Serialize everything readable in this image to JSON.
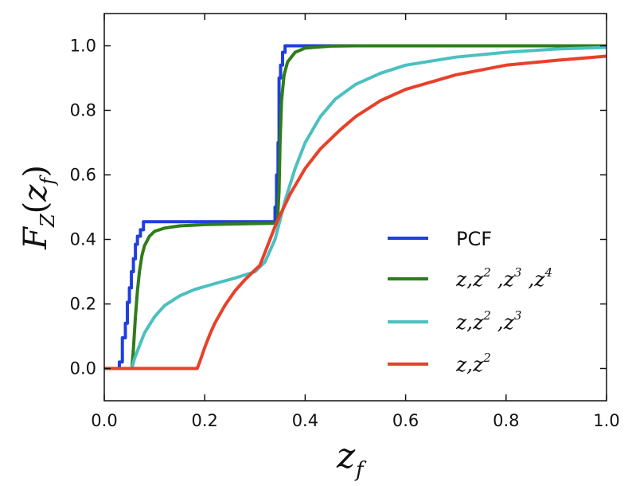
{
  "chart_data": {
    "type": "line",
    "title": "",
    "xlabel": "z_f",
    "ylabel": "F_Z(z_f)",
    "xlim": [
      0.0,
      1.0
    ],
    "ylim": [
      -0.1,
      1.1
    ],
    "grid": false,
    "legend_position": "bottom-right",
    "x_ticks": [
      "0.0",
      "0.2",
      "0.4",
      "0.6",
      "0.8",
      "1.0"
    ],
    "y_ticks": [
      "0.0",
      "0.2",
      "0.4",
      "0.6",
      "0.8",
      "1.0"
    ],
    "series": [
      {
        "name": "PCF",
        "color": "#1f3fe0",
        "step": true,
        "points": [
          [
            0.0,
            0.0
          ],
          [
            0.03,
            0.0
          ],
          [
            0.03,
            0.02
          ],
          [
            0.036,
            0.02
          ],
          [
            0.036,
            0.095
          ],
          [
            0.042,
            0.095
          ],
          [
            0.042,
            0.14
          ],
          [
            0.046,
            0.14
          ],
          [
            0.046,
            0.205
          ],
          [
            0.05,
            0.205
          ],
          [
            0.05,
            0.25
          ],
          [
            0.054,
            0.25
          ],
          [
            0.054,
            0.3
          ],
          [
            0.058,
            0.3
          ],
          [
            0.058,
            0.34
          ],
          [
            0.062,
            0.34
          ],
          [
            0.062,
            0.385
          ],
          [
            0.066,
            0.385
          ],
          [
            0.066,
            0.41
          ],
          [
            0.072,
            0.41
          ],
          [
            0.072,
            0.43
          ],
          [
            0.078,
            0.43
          ],
          [
            0.078,
            0.455
          ],
          [
            0.34,
            0.455
          ],
          [
            0.34,
            0.5
          ],
          [
            0.343,
            0.5
          ],
          [
            0.343,
            0.6
          ],
          [
            0.346,
            0.6
          ],
          [
            0.346,
            0.7
          ],
          [
            0.348,
            0.7
          ],
          [
            0.348,
            0.9
          ],
          [
            0.351,
            0.9
          ],
          [
            0.351,
            0.94
          ],
          [
            0.355,
            0.94
          ],
          [
            0.355,
            0.98
          ],
          [
            0.36,
            0.98
          ],
          [
            0.36,
            1.0
          ],
          [
            1.0,
            1.0
          ]
        ]
      },
      {
        "name": "z,z^2,z^3,z^4",
        "color": "#2e7d1a",
        "points": [
          [
            0.0,
            0.0
          ],
          [
            0.055,
            0.0
          ],
          [
            0.058,
            0.06
          ],
          [
            0.062,
            0.16
          ],
          [
            0.066,
            0.24
          ],
          [
            0.07,
            0.3
          ],
          [
            0.075,
            0.35
          ],
          [
            0.08,
            0.38
          ],
          [
            0.09,
            0.41
          ],
          [
            0.1,
            0.425
          ],
          [
            0.12,
            0.435
          ],
          [
            0.15,
            0.442
          ],
          [
            0.2,
            0.446
          ],
          [
            0.3,
            0.449
          ],
          [
            0.34,
            0.45
          ],
          [
            0.345,
            0.46
          ],
          [
            0.348,
            0.55
          ],
          [
            0.35,
            0.7
          ],
          [
            0.353,
            0.83
          ],
          [
            0.358,
            0.91
          ],
          [
            0.365,
            0.95
          ],
          [
            0.38,
            0.98
          ],
          [
            0.4,
            0.993
          ],
          [
            0.45,
            0.999
          ],
          [
            0.5,
            1.0
          ],
          [
            1.0,
            1.0
          ]
        ]
      },
      {
        "name": "z,z^2,z^3",
        "color": "#4cc0c0",
        "points": [
          [
            0.0,
            0.0
          ],
          [
            0.055,
            0.0
          ],
          [
            0.06,
            0.03
          ],
          [
            0.07,
            0.07
          ],
          [
            0.08,
            0.11
          ],
          [
            0.1,
            0.16
          ],
          [
            0.12,
            0.195
          ],
          [
            0.15,
            0.225
          ],
          [
            0.18,
            0.245
          ],
          [
            0.22,
            0.263
          ],
          [
            0.26,
            0.28
          ],
          [
            0.3,
            0.3
          ],
          [
            0.32,
            0.33
          ],
          [
            0.34,
            0.4
          ],
          [
            0.35,
            0.46
          ],
          [
            0.36,
            0.52
          ],
          [
            0.38,
            0.62
          ],
          [
            0.4,
            0.7
          ],
          [
            0.43,
            0.78
          ],
          [
            0.46,
            0.835
          ],
          [
            0.5,
            0.88
          ],
          [
            0.55,
            0.915
          ],
          [
            0.6,
            0.94
          ],
          [
            0.7,
            0.965
          ],
          [
            0.8,
            0.98
          ],
          [
            0.9,
            0.99
          ],
          [
            1.0,
            0.995
          ]
        ]
      },
      {
        "name": "z,z^2",
        "color": "#e8402a",
        "points": [
          [
            0.0,
            0.0
          ],
          [
            0.185,
            0.0
          ],
          [
            0.19,
            0.02
          ],
          [
            0.2,
            0.065
          ],
          [
            0.21,
            0.105
          ],
          [
            0.22,
            0.14
          ],
          [
            0.24,
            0.195
          ],
          [
            0.26,
            0.24
          ],
          [
            0.28,
            0.275
          ],
          [
            0.3,
            0.305
          ],
          [
            0.31,
            0.32
          ],
          [
            0.32,
            0.36
          ],
          [
            0.33,
            0.4
          ],
          [
            0.34,
            0.44
          ],
          [
            0.35,
            0.475
          ],
          [
            0.37,
            0.54
          ],
          [
            0.4,
            0.62
          ],
          [
            0.43,
            0.68
          ],
          [
            0.47,
            0.74
          ],
          [
            0.5,
            0.78
          ],
          [
            0.55,
            0.83
          ],
          [
            0.6,
            0.865
          ],
          [
            0.7,
            0.91
          ],
          [
            0.8,
            0.94
          ],
          [
            0.9,
            0.955
          ],
          [
            1.0,
            0.968
          ]
        ]
      }
    ]
  },
  "colors": {
    "axis": "#111111",
    "background": "#ffffff"
  }
}
